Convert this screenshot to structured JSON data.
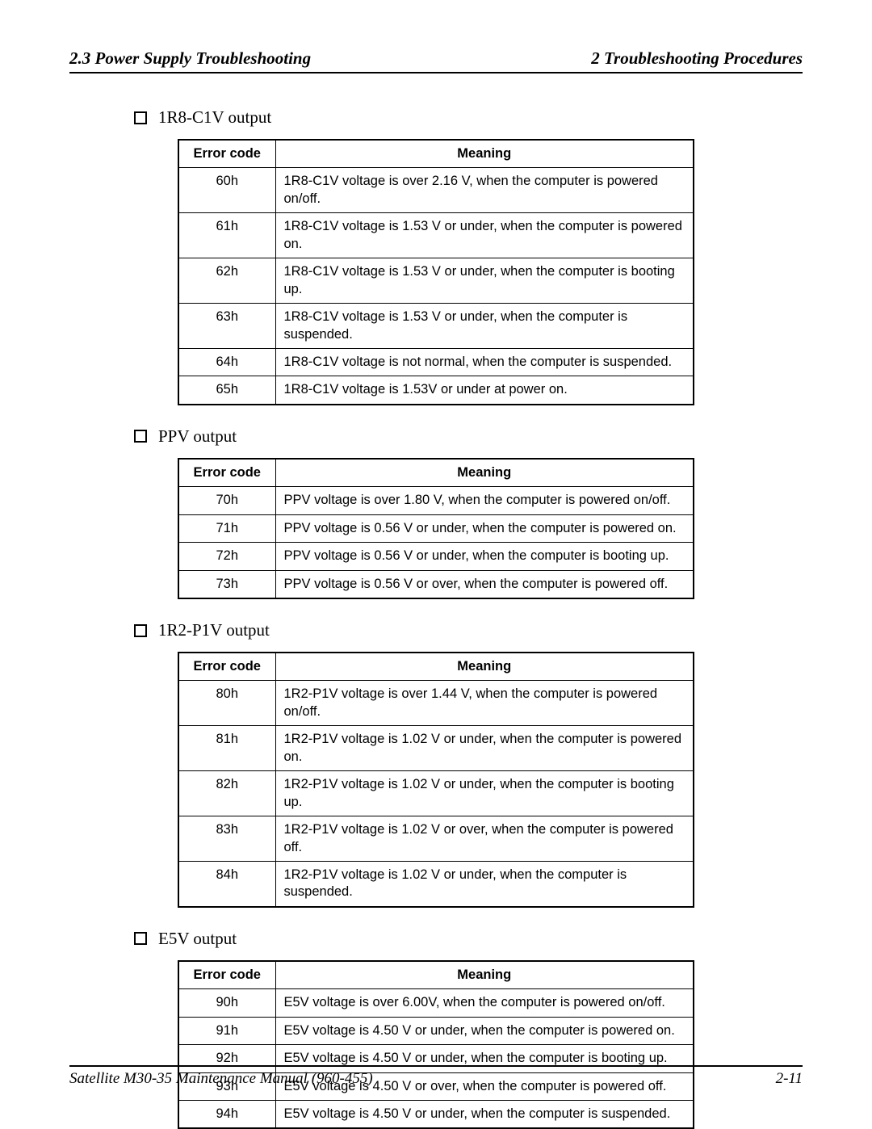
{
  "header": {
    "left": "2.3  Power Supply Troubleshooting",
    "right": "2  Troubleshooting Procedures"
  },
  "footer": {
    "left": "Satellite M30-35 Maintenance Manual (960-455)",
    "right": "2-11"
  },
  "tables": {
    "col_headers": {
      "code": "Error code",
      "meaning": "Meaning"
    }
  },
  "sections": [
    {
      "title": "1R8-C1V output",
      "rows": [
        {
          "code": "60h",
          "meaning": "1R8-C1V voltage is over 2.16 V, when the computer is powered on/off."
        },
        {
          "code": "61h",
          "meaning": "1R8-C1V voltage is 1.53 V or under, when the computer is powered on."
        },
        {
          "code": "62h",
          "meaning": "1R8-C1V voltage is 1.53 V or under, when the computer is booting up."
        },
        {
          "code": "63h",
          "meaning": "1R8-C1V voltage is 1.53 V or under, when the computer is suspended."
        },
        {
          "code": "64h",
          "meaning": "1R8-C1V voltage is not normal, when the computer is suspended."
        },
        {
          "code": "65h",
          "meaning": "1R8-C1V voltage is 1.53V or under at power on."
        }
      ]
    },
    {
      "title": "PPV output",
      "rows": [
        {
          "code": "70h",
          "meaning": "PPV voltage is over 1.80 V, when the computer is powered on/off."
        },
        {
          "code": "71h",
          "meaning": "PPV voltage is 0.56 V or under, when the computer is powered on."
        },
        {
          "code": "72h",
          "meaning": "PPV voltage is 0.56 V or under, when the computer is booting up."
        },
        {
          "code": "73h",
          "meaning": "PPV voltage is 0.56 V or over, when the computer is powered off."
        }
      ]
    },
    {
      "title": "1R2-P1V output",
      "rows": [
        {
          "code": "80h",
          "meaning": "1R2-P1V voltage is over 1.44 V, when the computer is powered on/off."
        },
        {
          "code": "81h",
          "meaning": "1R2-P1V voltage is 1.02 V or under, when the computer is powered on."
        },
        {
          "code": "82h",
          "meaning": "1R2-P1V voltage is 1.02 V or under, when the computer is booting up."
        },
        {
          "code": "83h",
          "meaning": "1R2-P1V voltage is 1.02 V or over, when the computer is powered off."
        },
        {
          "code": "84h",
          "meaning": "1R2-P1V voltage is 1.02 V or under, when the computer is suspended."
        }
      ]
    },
    {
      "title": "E5V output",
      "rows": [
        {
          "code": "90h",
          "meaning": "E5V voltage is over 6.00V, when the computer is powered on/off."
        },
        {
          "code": "91h",
          "meaning": "E5V voltage is 4.50 V or under, when the computer is powered on."
        },
        {
          "code": "92h",
          "meaning": "E5V voltage is 4.50 V or under, when the computer is booting up."
        },
        {
          "code": "93h",
          "meaning": "E5V voltage is 4.50 V or over, when the computer is powered off."
        },
        {
          "code": "94h",
          "meaning": "E5V voltage is 4.50 V or under, when the computer is suspended."
        }
      ]
    }
  ]
}
